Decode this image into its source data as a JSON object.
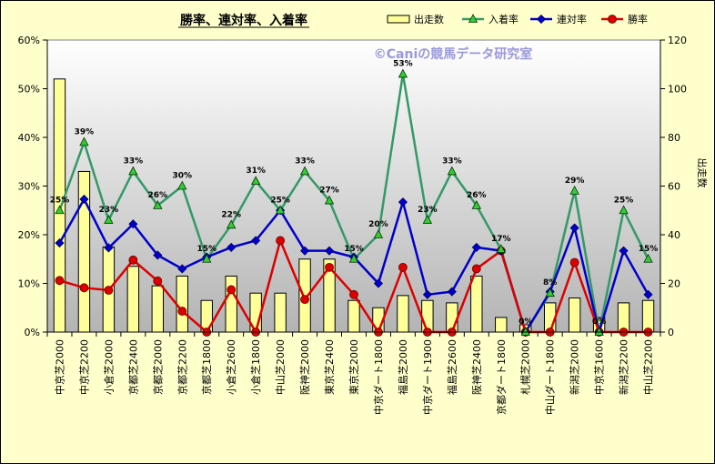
{
  "chart_data": {
    "type": "bar",
    "title": "勝率、連対率、入着率",
    "watermark": "©Caniの競馬データ研究室",
    "y2label": "出走数",
    "categories": [
      "中京芝2000",
      "中京芝2200",
      "小倉芝2000",
      "京都芝2400",
      "京都芝2000",
      "京都芝2200",
      "京都芝1800",
      "小倉芝2600",
      "小倉芝1800",
      "中山芝2000",
      "阪神芝2000",
      "東京芝2400",
      "東京芝2000",
      "中京ダート1800",
      "福島芝2000",
      "中京ダート1900",
      "福島芝2600",
      "阪神芝2400",
      "京都ダート1800",
      "札幌芝2000",
      "中山ダート1800",
      "新潟芝2000",
      "中京芝1600",
      "新潟芝2200",
      "中山芝2200"
    ],
    "y_left": {
      "min": 0,
      "max": 60,
      "step": 10,
      "unit": "%"
    },
    "y_right": {
      "min": 0,
      "max": 120,
      "step": 20
    },
    "series": [
      {
        "name": "出走数",
        "kind": "bar",
        "axis": "right",
        "color": "#ffff99",
        "values": [
          104,
          66,
          35,
          27,
          19,
          23,
          13,
          23,
          16,
          16,
          30,
          30,
          13,
          10,
          15,
          13,
          12,
          23,
          6,
          3,
          12,
          14,
          6,
          12,
          13
        ]
      },
      {
        "name": "入着率",
        "kind": "line",
        "axis": "left",
        "color": "#339966",
        "marker": "triangle",
        "values": [
          25,
          39,
          23,
          33,
          26,
          30,
          15,
          22,
          31,
          25,
          33,
          27,
          15,
          20,
          53,
          23,
          33,
          26,
          17,
          0,
          8,
          29,
          0,
          25,
          15
        ]
      },
      {
        "name": "連対率",
        "kind": "line",
        "axis": "left",
        "color": "#0000cc",
        "marker": "diamond",
        "values": [
          18.3,
          27.3,
          17.3,
          22.2,
          15.8,
          13,
          15.4,
          17.4,
          18.8,
          25,
          16.7,
          16.7,
          15.4,
          10,
          26.7,
          7.7,
          8.3,
          17.4,
          16.7,
          0,
          8.3,
          21.4,
          0,
          16.7,
          7.7
        ]
      },
      {
        "name": "勝率",
        "kind": "line",
        "axis": "left",
        "color": "#dd0000",
        "marker": "circle",
        "values": [
          10.6,
          9.1,
          8.6,
          14.8,
          10.5,
          4.3,
          0,
          8.7,
          0,
          18.8,
          6.7,
          13.3,
          7.7,
          0,
          13.3,
          0,
          0,
          13,
          16.7,
          0,
          0,
          14.3,
          0,
          0,
          0
        ]
      }
    ],
    "data_labels": {
      "series": "入着率",
      "values": [
        "25%",
        "39%",
        "23%",
        "33%",
        "26%",
        "30%",
        "15%",
        "22%",
        "31%",
        "25%",
        "33%",
        "27%",
        "15%",
        "20%",
        "53%",
        "23%",
        "33%",
        "26%",
        "17%",
        "0%",
        "8%",
        "29%",
        "0%",
        "25%",
        "15%"
      ]
    },
    "legend_position": "top-right",
    "grid": false
  }
}
